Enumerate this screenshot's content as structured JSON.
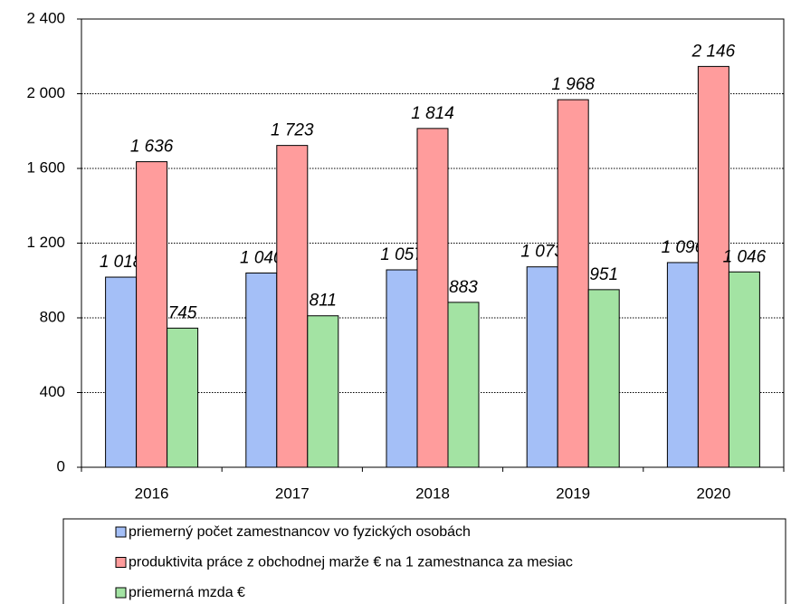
{
  "chart_data": {
    "type": "bar",
    "categories": [
      "2016",
      "2017",
      "2018",
      "2019",
      "2020"
    ],
    "series": [
      {
        "name": "priemerný počet zamestnancov vo fyzických osobách",
        "color": "#a4bff7",
        "values": [
          1018,
          1040,
          1057,
          1073,
          1096
        ],
        "value_labels": [
          "1 018",
          "1 040",
          "1 057",
          "1 073",
          "1 096"
        ]
      },
      {
        "name": "produktivita práce z obchodnej marže € na 1 zamestnanca za mesiac",
        "color": "#ff9c9c",
        "values": [
          1636,
          1723,
          1814,
          1968,
          2146
        ],
        "value_labels": [
          "1 636",
          "1 723",
          "1 814",
          "1 968",
          "2 146"
        ]
      },
      {
        "name": "priemerná mzda €",
        "color": "#a3e3a3",
        "values": [
          745,
          811,
          883,
          951,
          1046
        ],
        "value_labels": [
          "745",
          "811",
          "883",
          "951",
          "1 046"
        ]
      }
    ],
    "ylim": [
      0,
      2400
    ],
    "yticks": [
      0,
      400,
      800,
      {
        "value": 1200,
        "label": "1 200"
      },
      {
        "value": 1600,
        "label": "1 600"
      },
      {
        "value": 2000,
        "label": "2 000"
      },
      {
        "value": 2400,
        "label": "2 400"
      }
    ],
    "grid": true
  }
}
